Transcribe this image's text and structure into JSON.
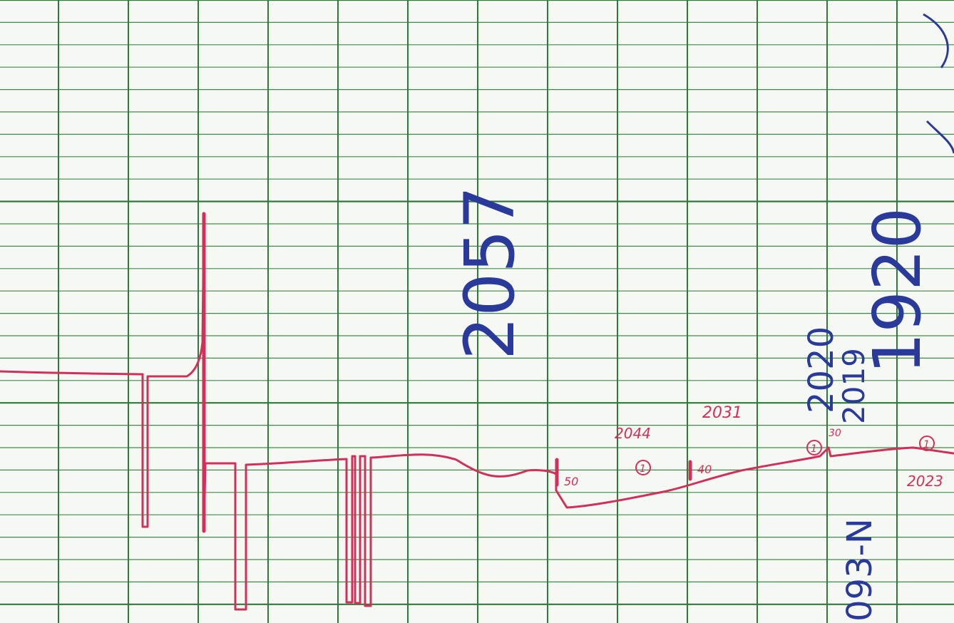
{
  "colors": {
    "paper": "#f6f8f4",
    "grid_major": "#2f7a3a",
    "grid_minor": "#3f8a4a",
    "red_ink": "#d0305a",
    "blue_ink": "#2a3a9a"
  },
  "red_annotations": {
    "label_2031": "2031",
    "label_2044": "2044",
    "label_2023": "2023",
    "mark_50": "50",
    "mark_40": "40",
    "mark_30": "30",
    "circle_1": "1",
    "circle_2": "1",
    "circle_3": "1",
    "circle_4": "1"
  },
  "blue_annotations": {
    "vertical_2057": "2057",
    "vertical_2020": "2020",
    "vertical_2019": "2019",
    "vertical_1920": "1920",
    "vertical_093n": "093-N"
  }
}
